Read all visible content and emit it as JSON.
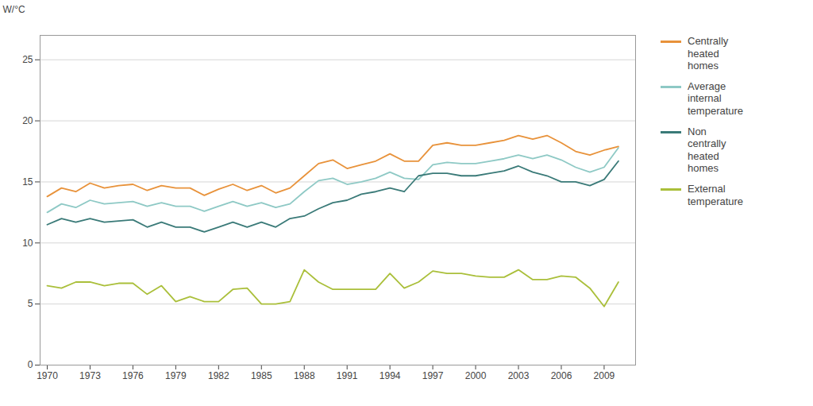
{
  "chart_data": {
    "type": "line",
    "y_label": "W/°C",
    "x": [
      1970,
      1971,
      1972,
      1973,
      1974,
      1975,
      1976,
      1977,
      1978,
      1979,
      1980,
      1981,
      1982,
      1983,
      1984,
      1985,
      1986,
      1987,
      1988,
      1989,
      1990,
      1991,
      1992,
      1993,
      1994,
      1995,
      1996,
      1997,
      1998,
      1999,
      2000,
      2001,
      2002,
      2003,
      2004,
      2005,
      2006,
      2007,
      2008,
      2009,
      2010
    ],
    "series": [
      {
        "name": "Centrally\nheated\nhomes",
        "color": "#E8923A",
        "values": [
          13.8,
          14.5,
          14.2,
          14.9,
          14.5,
          14.7,
          14.8,
          14.3,
          14.7,
          14.5,
          14.5,
          13.9,
          14.4,
          14.8,
          14.3,
          14.7,
          14.1,
          14.5,
          15.5,
          16.5,
          16.8,
          16.1,
          16.4,
          16.7,
          17.3,
          16.7,
          16.7,
          18.0,
          18.2,
          18.0,
          18.0,
          18.2,
          18.4,
          18.8,
          18.5,
          18.8,
          18.2,
          17.5,
          17.2,
          17.6,
          17.9
        ]
      },
      {
        "name": "Average\ninternal\ntemperature",
        "color": "#8EC9C5",
        "values": [
          12.5,
          13.2,
          12.9,
          13.5,
          13.2,
          13.3,
          13.4,
          13.0,
          13.3,
          13.0,
          13.0,
          12.6,
          13.0,
          13.4,
          13.0,
          13.3,
          12.9,
          13.2,
          14.2,
          15.1,
          15.3,
          14.8,
          15.0,
          15.3,
          15.8,
          15.3,
          15.2,
          16.4,
          16.6,
          16.5,
          16.5,
          16.7,
          16.9,
          17.2,
          16.9,
          17.2,
          16.8,
          16.2,
          15.8,
          16.2,
          17.8
        ]
      },
      {
        "name": "Non\ncentrally\nheated\nhomes",
        "color": "#3A7A78",
        "values": [
          11.5,
          12.0,
          11.7,
          12.0,
          11.7,
          11.8,
          11.9,
          11.3,
          11.7,
          11.3,
          11.3,
          10.9,
          11.3,
          11.7,
          11.3,
          11.7,
          11.3,
          12.0,
          12.2,
          12.8,
          13.3,
          13.5,
          14.0,
          14.2,
          14.5,
          14.2,
          15.5,
          15.7,
          15.7,
          15.5,
          15.5,
          15.7,
          15.9,
          16.3,
          15.8,
          15.5,
          15.0,
          15.0,
          14.7,
          15.2,
          16.7
        ]
      },
      {
        "name": "External\ntemperature",
        "color": "#AABF3A",
        "values": [
          6.5,
          6.3,
          6.8,
          6.8,
          6.5,
          6.7,
          6.7,
          5.8,
          6.5,
          5.2,
          5.6,
          5.2,
          5.2,
          6.2,
          6.3,
          5.0,
          5.0,
          5.2,
          7.8,
          6.8,
          6.2,
          6.2,
          6.2,
          6.2,
          7.5,
          6.3,
          6.8,
          7.7,
          7.5,
          7.5,
          7.3,
          7.2,
          7.2,
          7.8,
          7.0,
          7.0,
          7.3,
          7.2,
          6.3,
          4.8,
          6.8
        ]
      }
    ],
    "xlim": [
      1969.5,
      2011.2
    ],
    "xticks": [
      1970,
      1973,
      1976,
      1979,
      1982,
      1985,
      1988,
      1991,
      1994,
      1997,
      2000,
      2003,
      2006,
      2009
    ],
    "ylim": [
      0,
      27
    ],
    "yticks": [
      0,
      5,
      10,
      15,
      20,
      25
    ],
    "grid": true,
    "legend": "right"
  }
}
